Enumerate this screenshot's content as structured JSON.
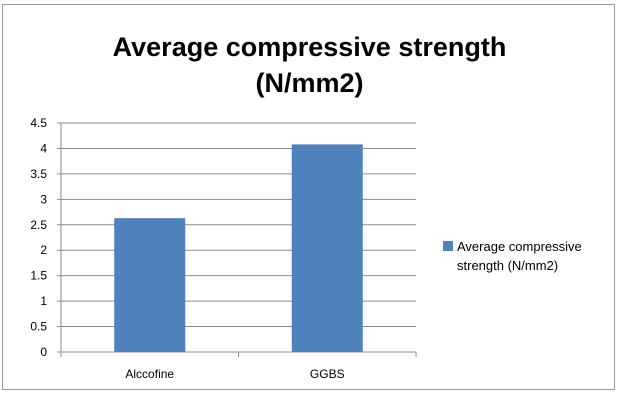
{
  "chart_data": {
    "type": "bar",
    "title": "Average compressive strength (N/mm2)",
    "title_lines": [
      "Average compressive strength",
      "(N/mm2)"
    ],
    "categories": [
      "Alccofine",
      "GGBS"
    ],
    "series": [
      {
        "name": "Average compressive strength (N/mm2)",
        "values": [
          2.63,
          4.08
        ],
        "color": "#4f81bd"
      }
    ],
    "xlabel": "",
    "ylabel": "",
    "ylim": [
      0,
      4.5
    ],
    "yticks": [
      "0",
      "0.5",
      "1",
      "1.5",
      "2",
      "2.5",
      "3",
      "3.5",
      "4",
      "4.5"
    ],
    "grid": true,
    "legend_position": "right"
  }
}
